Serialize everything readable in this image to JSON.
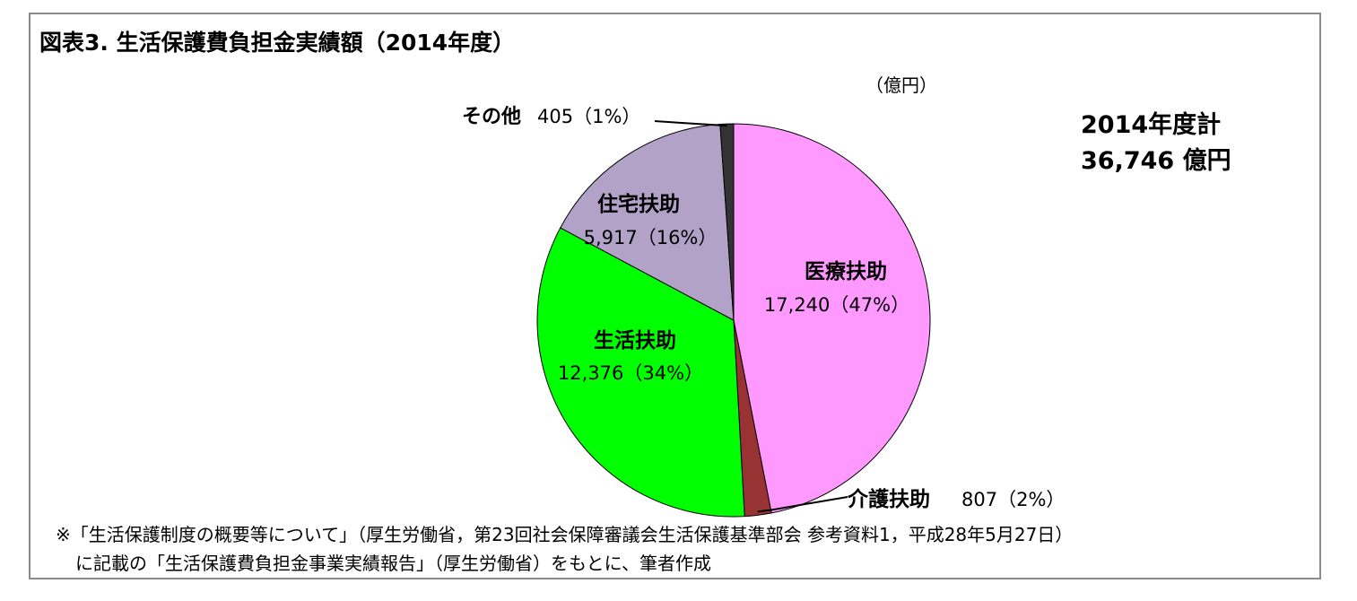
{
  "title": "図表3. 生活保護費負担金実績額（2014年度）",
  "unit": "（億円）",
  "total": {
    "line1": "2014年度計",
    "line2": "36,746 億円"
  },
  "note": {
    "line1": "※「生活保護制度の概要等について」（厚生労働省，第23回社会保障審議会生活保護基準部会 参考資料1，平成28年5月27日）",
    "line2": "に記載の「生活保護費負担金事業実績報告」（厚生労働省）をもとに、筆者作成"
  },
  "colors": {
    "medical": "#ff99ff",
    "care": "#993333",
    "living": "#00ff00",
    "housing": "#b3a2c7",
    "other": "#333333"
  },
  "chart_data": {
    "type": "pie",
    "title": "図表3. 生活保護費負担金実績額（2014年度）",
    "unit": "億円",
    "total": 36746,
    "start": "12 o'clock, clockwise",
    "slices": [
      {
        "name": "医療扶助",
        "value": 17240,
        "percent": 47,
        "color": "#ff99ff",
        "value_label": "17,240（47%）"
      },
      {
        "name": "介護扶助",
        "value": 807,
        "percent": 2,
        "color": "#993333",
        "value_label": "807（2%）"
      },
      {
        "name": "生活扶助",
        "value": 12376,
        "percent": 34,
        "color": "#00ff00",
        "value_label": "12,376（34%）"
      },
      {
        "name": "住宅扶助",
        "value": 5917,
        "percent": 16,
        "color": "#b3a2c7",
        "value_label": "5,917（16%）"
      },
      {
        "name": "その他",
        "value": 405,
        "percent": 1,
        "color": "#333333",
        "value_label": "405（1%）"
      }
    ]
  }
}
